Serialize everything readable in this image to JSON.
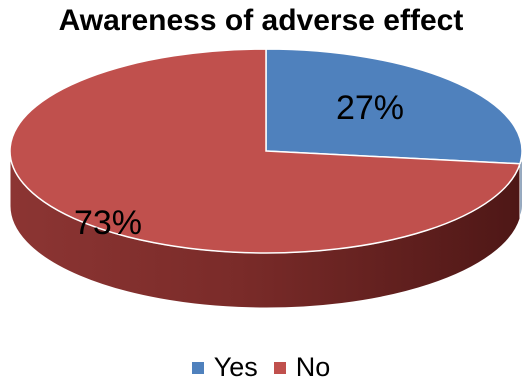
{
  "chart_data": {
    "type": "pie",
    "title": "Awareness of adverse effect",
    "slices": [
      {
        "label": "Yes",
        "value": 27,
        "display": "27%",
        "color": "#4F81BD"
      },
      {
        "label": "No",
        "value": 73,
        "display": "73%",
        "color": "#C0504D"
      }
    ],
    "legend_position": "bottom",
    "three_d": true
  }
}
